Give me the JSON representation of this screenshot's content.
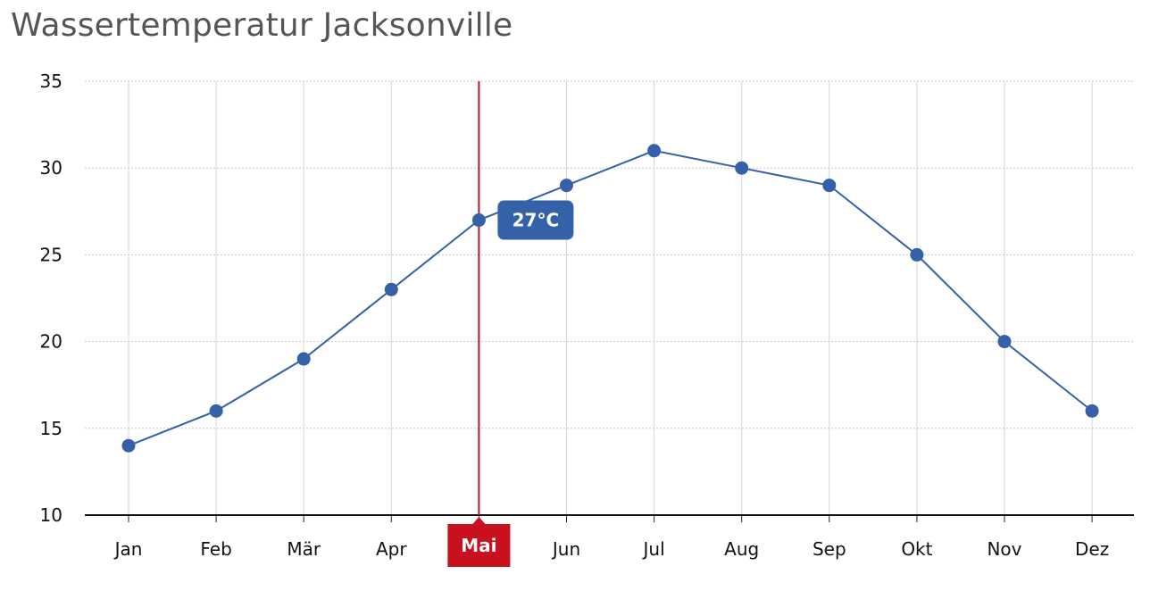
{
  "chart_data": {
    "type": "line",
    "title": "Wassertemperatur Jacksonville",
    "categories": [
      "Jan",
      "Feb",
      "Mär",
      "Apr",
      "Mai",
      "Jun",
      "Jul",
      "Aug",
      "Sep",
      "Okt",
      "Nov",
      "Dez"
    ],
    "series": [
      {
        "values": [
          14,
          16,
          19,
          23,
          27,
          29,
          31,
          30,
          29,
          25,
          20,
          16
        ]
      }
    ],
    "ylim": [
      10,
      35
    ],
    "yticks": [
      10,
      15,
      20,
      25,
      30,
      35
    ],
    "grid": true,
    "highlight": {
      "category": "Mai",
      "label": "Mai",
      "tooltip": "27°C"
    },
    "colors": {
      "line": "#3461a8",
      "point": "#3461a8",
      "marker": "#c8101e",
      "grid_y": "#c8c8c8",
      "grid_x": "#d5d5d5"
    }
  }
}
